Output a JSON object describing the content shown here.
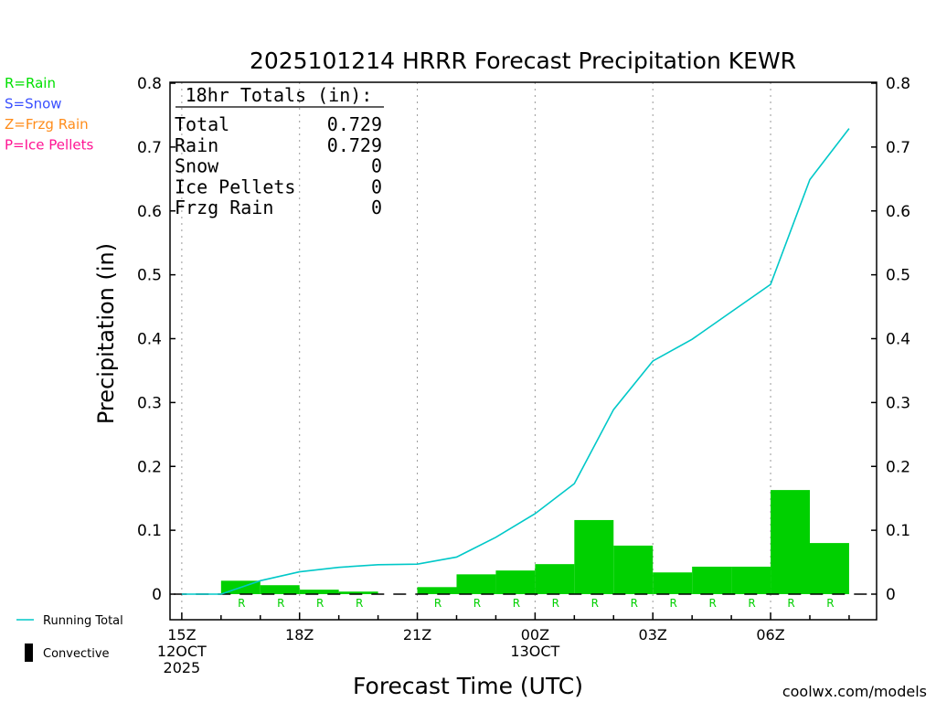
{
  "chart_data": {
    "type": "bar",
    "title": "2025101214 HRRR Forecast Precipitation KEWR",
    "xlabel": "Forecast Time (UTC)",
    "ylabel": "Precipitation (in)",
    "ylim": [
      0,
      0.8
    ],
    "yticks": [
      "0",
      "0.1",
      "0.2",
      "0.3",
      "0.4",
      "0.5",
      "0.6",
      "0.7",
      "0.8"
    ],
    "xlim": [
      14.7,
      32.7
    ],
    "x_ticks": [
      {
        "x": 15,
        "lines": [
          "15Z",
          "12OCT",
          "2025"
        ]
      },
      {
        "x": 18,
        "lines": [
          "18Z"
        ]
      },
      {
        "x": 21,
        "lines": [
          "21Z"
        ]
      },
      {
        "x": 24,
        "lines": [
          "00Z",
          "13OCT"
        ]
      },
      {
        "x": 27,
        "lines": [
          "03Z"
        ]
      },
      {
        "x": 30,
        "lines": [
          "06Z"
        ]
      }
    ],
    "hourly_precip": [
      {
        "x": 17,
        "value": 0.021,
        "type": "R"
      },
      {
        "x": 18,
        "value": 0.014,
        "type": "R"
      },
      {
        "x": 19,
        "value": 0.007,
        "type": "R"
      },
      {
        "x": 20,
        "value": 0.004,
        "type": "R"
      },
      {
        "x": 21,
        "value": 0.0,
        "type": ""
      },
      {
        "x": 22,
        "value": 0.011,
        "type": "R"
      },
      {
        "x": 23,
        "value": 0.031,
        "type": "R"
      },
      {
        "x": 24,
        "value": 0.037,
        "type": "R"
      },
      {
        "x": 25,
        "value": 0.047,
        "type": "R"
      },
      {
        "x": 26,
        "value": 0.116,
        "type": "R"
      },
      {
        "x": 27,
        "value": 0.076,
        "type": "R"
      },
      {
        "x": 28,
        "value": 0.034,
        "type": "R"
      },
      {
        "x": 29,
        "value": 0.043,
        "type": "R"
      },
      {
        "x": 30,
        "value": 0.043,
        "type": "R"
      },
      {
        "x": 31,
        "value": 0.163,
        "type": "R"
      },
      {
        "x": 32,
        "value": 0.08,
        "type": "R"
      }
    ],
    "running_total": {
      "x": [
        15,
        16,
        17,
        18,
        19,
        20,
        21,
        22,
        23,
        24,
        25,
        26,
        27,
        28,
        29,
        30,
        31,
        32
      ],
      "y": [
        0,
        0,
        0.021,
        0.035,
        0.042,
        0.046,
        0.047,
        0.058,
        0.089,
        0.126,
        0.173,
        0.289,
        0.365,
        0.399,
        0.442,
        0.485,
        0.649,
        0.729
      ]
    },
    "totals_box": {
      "header": "18hr Totals (in):",
      "rows": [
        {
          "label": "Total",
          "value": "0.729"
        },
        {
          "label": "Rain",
          "value": "0.729"
        },
        {
          "label": "Snow",
          "value": "0"
        },
        {
          "label": "Ice Pellets",
          "value": "0"
        },
        {
          "label": "Frzg Rain",
          "value": "0"
        }
      ]
    },
    "type_legend": [
      {
        "text": "R=Rain",
        "color": "#00e000"
      },
      {
        "text": "S=Snow",
        "color": "#3a50ff"
      },
      {
        "text": "Z=Frzg Rain",
        "color": "#ff8c1a"
      },
      {
        "text": "P=Ice Pellets",
        "color": "#ff1493"
      }
    ],
    "series_legend": [
      {
        "name": "Running Total",
        "color": "#00c8c8",
        "kind": "line"
      },
      {
        "name": "Convective",
        "color": "#000000",
        "kind": "bar"
      }
    ],
    "colors": {
      "bar": "#00d000",
      "line": "#00c8c8",
      "rain_label": "#00d000",
      "grid": "#999999",
      "credit": "#e00000"
    },
    "grid": "vertical dotted",
    "credit": "coolwx.com/models"
  }
}
